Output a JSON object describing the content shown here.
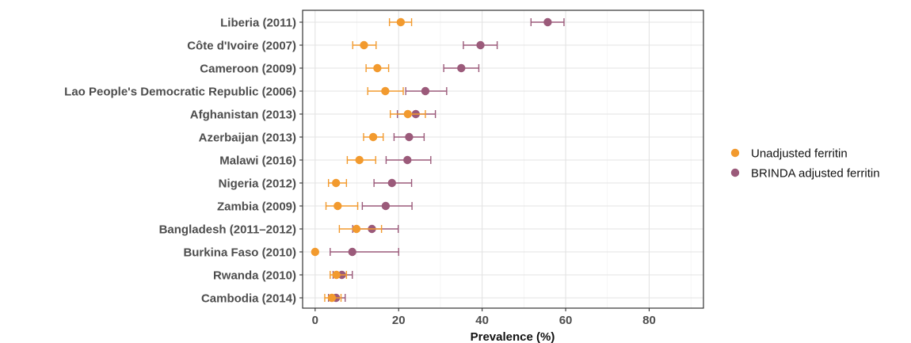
{
  "chart_data": {
    "type": "scatter",
    "title": "",
    "xlabel": "Prevalence (%)",
    "ylabel": "",
    "xlim": [
      -3,
      93
    ],
    "xticks": [
      0,
      20,
      40,
      60,
      80
    ],
    "grid": true,
    "legend_position": "right",
    "categories": [
      "Liberia (2011)",
      "Côte d'Ivoire (2007)",
      "Cameroon (2009)",
      "Lao People's Democratic Republic (2006)",
      "Afghanistan (2013)",
      "Azerbaijan (2013)",
      "Malawi (2016)",
      "Nigeria (2012)",
      "Zambia (2009)",
      "Bangladesh (2011–2012)",
      "Burkina Faso (2010)",
      "Rwanda (2010)",
      "Cambodia (2014)"
    ],
    "series": [
      {
        "name": "Unadjusted ferritin",
        "color": "#f29a2e",
        "values": [
          20.5,
          11.7,
          14.9,
          16.8,
          22.2,
          13.9,
          10.6,
          5.0,
          5.4,
          9.9,
          0.0,
          5.1,
          4.0
        ],
        "lower": [
          17.8,
          9.0,
          12.2,
          12.6,
          18.0,
          11.6,
          7.7,
          3.2,
          2.6,
          5.8,
          0.0,
          3.6,
          2.3
        ],
        "upper": [
          23.1,
          14.6,
          17.6,
          21.1,
          26.4,
          16.3,
          14.5,
          7.5,
          10.2,
          15.9,
          0.0,
          7.5,
          6.2
        ]
      },
      {
        "name": "BRINDA adjusted ferritin",
        "color": "#9b5a7a",
        "values": [
          55.7,
          39.6,
          35.0,
          26.4,
          24.1,
          22.5,
          22.1,
          18.4,
          16.9,
          13.6,
          8.9,
          6.4,
          5.0
        ],
        "lower": [
          51.7,
          35.5,
          30.8,
          21.7,
          19.7,
          18.9,
          17.0,
          14.1,
          11.3,
          9.0,
          3.6,
          4.3,
          3.2
        ],
        "upper": [
          59.6,
          43.6,
          39.2,
          31.5,
          28.8,
          26.1,
          27.7,
          23.1,
          23.2,
          19.9,
          20.0,
          8.9,
          7.2
        ]
      }
    ]
  }
}
